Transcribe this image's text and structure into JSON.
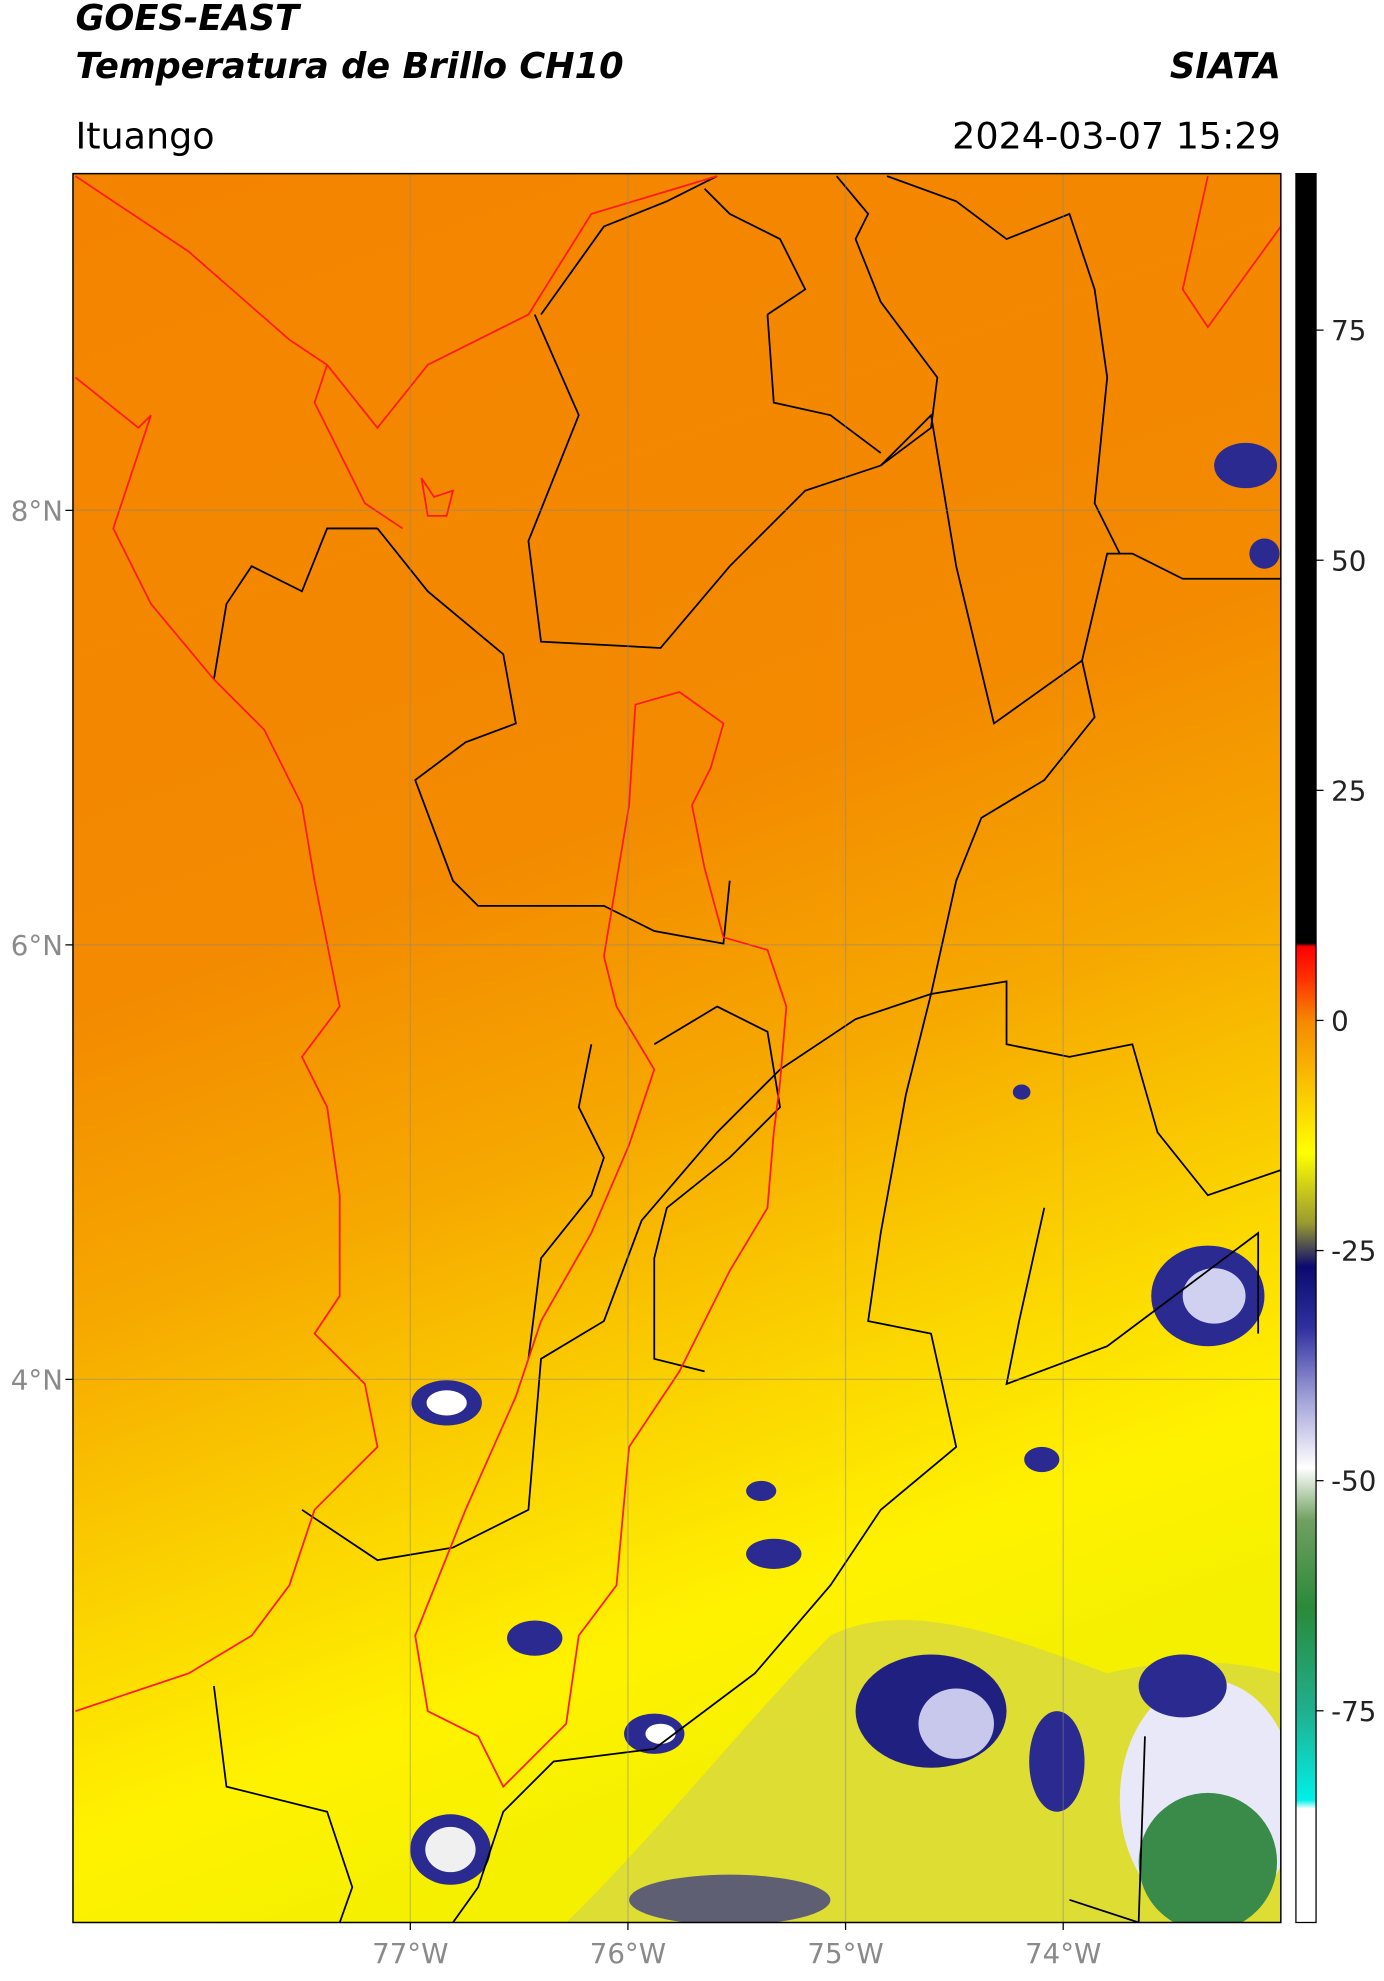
{
  "header": {
    "title": "GOES-EAST",
    "subtitle": "Temperatura de Brillo CH10",
    "source": "SIATA",
    "location": "Ituango",
    "datetime": "2024-03-07 15:29"
  },
  "map": {
    "xlim": [
      -78.55,
      -73.0
    ],
    "ylim": [
      1.5,
      9.55
    ],
    "xticks": [
      {
        "value": -77,
        "label": "77°W"
      },
      {
        "value": -76,
        "label": "76°W"
      },
      {
        "value": -75,
        "label": "75°W"
      },
      {
        "value": -74,
        "label": "74°W"
      }
    ],
    "yticks": [
      {
        "value": 8,
        "label": "8°N"
      },
      {
        "value": 6,
        "label": "6°N"
      },
      {
        "value": 4,
        "label": "4°N"
      }
    ]
  },
  "colorbar": {
    "lim": [
      -98,
      92
    ],
    "ticks": [
      75,
      50,
      25,
      0,
      -25,
      -50,
      -75
    ]
  }
}
